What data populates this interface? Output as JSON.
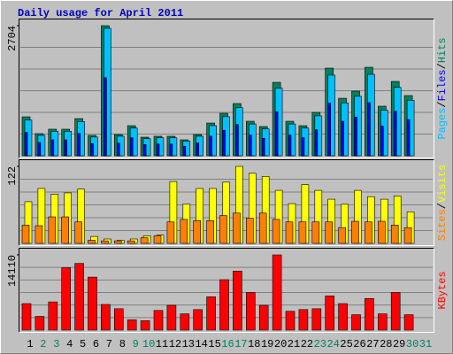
{
  "chart_data": [
    {
      "type": "bar",
      "title": "Daily usage for April 2011",
      "categories": [
        "1",
        "2",
        "3",
        "4",
        "5",
        "6",
        "7",
        "8",
        "9",
        "10",
        "11",
        "12",
        "13",
        "14",
        "15",
        "16",
        "17",
        "18",
        "19",
        "20",
        "21",
        "22",
        "23",
        "24",
        "25",
        "26",
        "27",
        "28",
        "29",
        "30",
        "31"
      ],
      "category_colors": [
        "#000000",
        "#00805c",
        "#00805c",
        "#000000",
        "#000000",
        "#000000",
        "#000000",
        "#000000",
        "#00805c",
        "#00805c",
        "#000000",
        "#000000",
        "#000000",
        "#000000",
        "#000000",
        "#00805c",
        "#00805c",
        "#000000",
        "#000000",
        "#000000",
        "#000000",
        "#000000",
        "#00805c",
        "#00805c",
        "#000000",
        "#000000",
        "#000000",
        "#000000",
        "#000000",
        "#00805c",
        "#00805c"
      ],
      "ylim": [
        0,
        2704
      ],
      "yticks": [
        2704
      ],
      "grid": true,
      "separator": "/",
      "series": [
        {
          "name": "Hits",
          "color": "#00805c",
          "values": [
            809,
            460,
            552,
            552,
            772,
            423,
            2704,
            441,
            625,
            386,
            405,
            405,
            331,
            441,
            680,
            883,
            1085,
            717,
            607,
            1526,
            717,
            625,
            901,
            1821,
            1195,
            1343,
            1839,
            1030,
            1545,
            1251,
            null
          ]
        },
        {
          "name": "Files",
          "color": "#0000ff",
          "values": [
            485,
            276,
            331,
            331,
            463,
            254,
            1622,
            265,
            375,
            232,
            243,
            243,
            199,
            265,
            408,
            530,
            651,
            430,
            364,
            916,
            430,
            375,
            541,
            1093,
            717,
            806,
            1103,
            618,
            927,
            751,
            null
          ]
        },
        {
          "name": "Pages",
          "color": "#00c0ff",
          "values": [
            744,
            423,
            508,
            508,
            710,
            389,
            2649,
            406,
            575,
            355,
            373,
            373,
            305,
            406,
            626,
            812,
            998,
            660,
            558,
            1404,
            660,
            575,
            829,
            1675,
            1099,
            1236,
            1692,
            948,
            1421,
            1151,
            null
          ]
        }
      ]
    },
    {
      "type": "bar",
      "ylim": [
        0,
        122
      ],
      "yticks": [
        122
      ],
      "grid": true,
      "separator": "/",
      "series": [
        {
          "name": "Visits",
          "color": "#ffff00",
          "values": [
            66,
            87,
            78,
            80,
            86,
            11,
            7,
            5,
            7,
            12,
            13,
            98,
            62,
            87,
            87,
            97,
            122,
            111,
            106,
            84,
            63,
            93,
            84,
            70,
            62,
            84,
            74,
            70,
            75,
            50,
            null
          ]
        },
        {
          "name": "Sites",
          "color": "#ff8000",
          "values": [
            29,
            28,
            42,
            42,
            34,
            5,
            4,
            4,
            4,
            9,
            12,
            34,
            38,
            36,
            36,
            44,
            48,
            40,
            48,
            38,
            34,
            34,
            34,
            34,
            25,
            35,
            34,
            35,
            29,
            25,
            null
          ]
        }
      ]
    },
    {
      "type": "bar",
      "ylim": [
        0,
        14110
      ],
      "yticks": [
        14110
      ],
      "grid": true,
      "series": [
        {
          "name": "KBytes",
          "color": "#ff0000",
          "values": [
            4969,
            2565,
            5290,
            11702,
            12503,
            9939,
            4809,
            4008,
            1924,
            1763,
            3687,
            4649,
            3046,
            3847,
            6252,
            9458,
            11061,
            7053,
            4649,
            14110,
            3527,
            3847,
            4008,
            6412,
            4969,
            2885,
            5931,
            3046,
            7053,
            2885,
            null
          ]
        }
      ]
    }
  ]
}
